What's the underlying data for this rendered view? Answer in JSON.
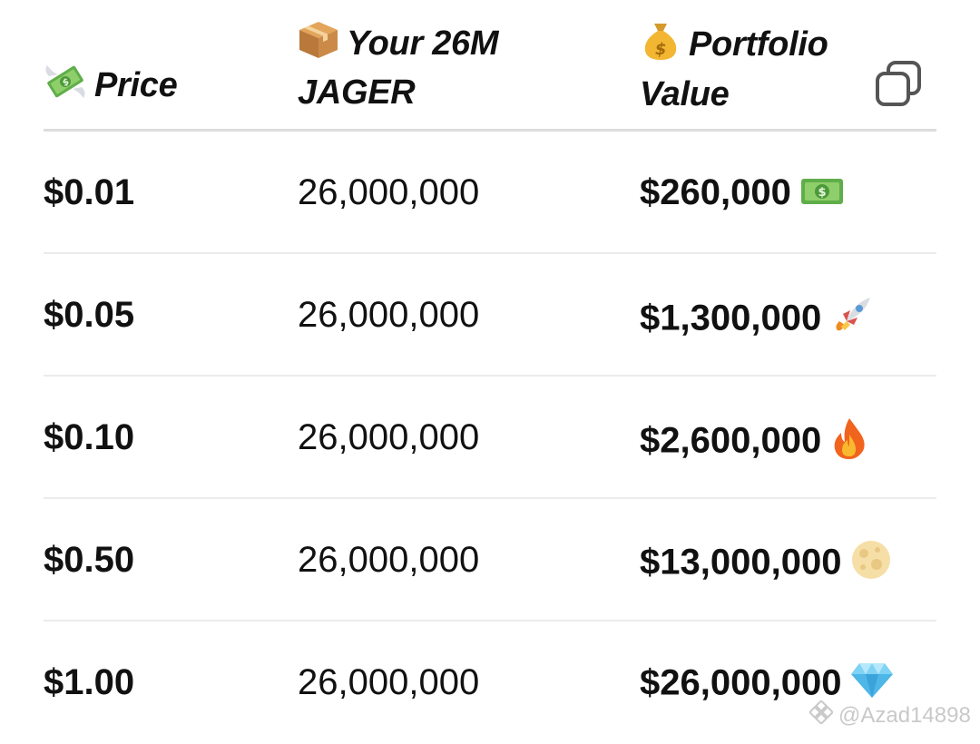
{
  "table": {
    "headers": {
      "price": {
        "icon": "money-with-wings-icon",
        "label": "Price"
      },
      "quantity": {
        "icon": "package-icon",
        "label": "Your 26M JAGER"
      },
      "value": {
        "icon": "money-bag-icon",
        "label": "Portfolio Value"
      }
    },
    "copy_icon": "copy-icon",
    "rows": [
      {
        "price": "$0.01",
        "quantity": "26,000,000",
        "value": "$260,000",
        "icon": "dollar-banknote-icon"
      },
      {
        "price": "$0.05",
        "quantity": "26,000,000",
        "value": "$1,300,000",
        "icon": "rocket-icon"
      },
      {
        "price": "$0.10",
        "quantity": "26,000,000",
        "value": "$2,600,000",
        "icon": "fire-icon"
      },
      {
        "price": "$0.50",
        "quantity": "26,000,000",
        "value": "$13,000,000",
        "icon": "full-moon-icon"
      },
      {
        "price": "$1.00",
        "quantity": "26,000,000",
        "value": "$26,000,000",
        "icon": "gem-icon"
      }
    ]
  },
  "watermark": {
    "icon": "binance-logo-icon",
    "text": "@Azad14898"
  }
}
